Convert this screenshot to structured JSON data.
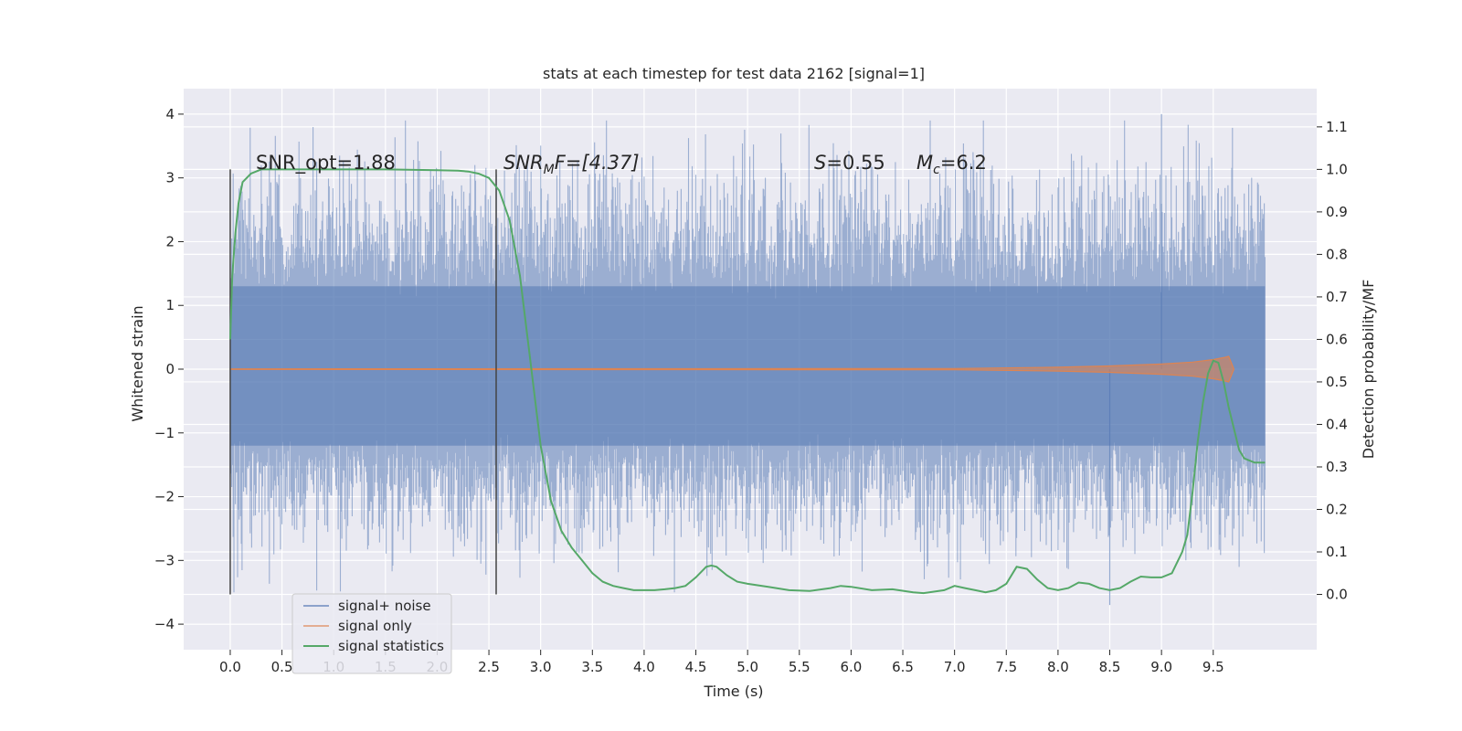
{
  "chart_data": {
    "type": "line",
    "title": "stats at each timestep for test data 2162 [signal=1]",
    "xlabel": "Time (s)",
    "ylabel": "Whitened strain",
    "y2label": "Detection probability/MF",
    "xlim": [
      -0.45,
      10.5
    ],
    "ylim": [
      -4.4,
      4.4
    ],
    "y2lim": [
      -0.13,
      1.19
    ],
    "x_ticks": [
      0.0,
      0.5,
      1.0,
      1.5,
      2.0,
      2.5,
      3.0,
      3.5,
      4.0,
      4.5,
      5.0,
      5.5,
      6.0,
      6.5,
      7.0,
      7.5,
      8.0,
      8.5,
      9.0,
      9.5
    ],
    "x_tick_labels": [
      "0.0",
      "0.5",
      "1.0",
      "1.5",
      "2.0",
      "2.5",
      "3.0",
      "3.5",
      "4.0",
      "4.5",
      "5.0",
      "5.5",
      "6.0",
      "6.5",
      "7.0",
      "7.5",
      "8.0",
      "8.5",
      "9.0",
      "9.5"
    ],
    "y_ticks": [
      -4,
      -3,
      -2,
      -1,
      0,
      1,
      2,
      3,
      4
    ],
    "y_tick_labels": [
      "−4",
      "−3",
      "−2",
      "−1",
      "0",
      "1",
      "2",
      "3",
      "4"
    ],
    "y2_ticks": [
      0.0,
      0.1,
      0.2,
      0.3,
      0.4,
      0.5,
      0.6,
      0.7,
      0.8,
      0.9,
      1.0,
      1.1
    ],
    "y2_tick_labels": [
      "0.0",
      "0.1",
      "0.2",
      "0.3",
      "0.4",
      "0.5",
      "0.6",
      "0.7",
      "0.8",
      "0.9",
      "1.0",
      "1.1"
    ],
    "grid": true,
    "legend_position": "lower-left",
    "series": [
      {
        "name": "signal+ noise",
        "axis": "left",
        "color": "#4c72b0",
        "x_range": [
          0.0,
          10.0
        ],
        "band_min": -2.0,
        "band_max": 2.0,
        "extremes_max": 4.0,
        "extremes_min": -3.7
      },
      {
        "name": "signal only",
        "axis": "left",
        "color": "#dd8452",
        "envelope_x": [
          0.0,
          7.0,
          8.0,
          8.5,
          9.0,
          9.3,
          9.5,
          9.6,
          9.65,
          9.7
        ],
        "envelope_amp": [
          0.005,
          0.01,
          0.03,
          0.05,
          0.08,
          0.11,
          0.15,
          0.18,
          0.2,
          0.0
        ]
      },
      {
        "name": "signal statistics",
        "axis": "right",
        "color": "#55a868",
        "x": [
          0.0,
          0.02,
          0.05,
          0.08,
          0.12,
          0.2,
          0.3,
          0.5,
          1.0,
          1.5,
          2.0,
          2.2,
          2.3,
          2.4,
          2.5,
          2.6,
          2.7,
          2.8,
          2.9,
          3.0,
          3.1,
          3.2,
          3.3,
          3.4,
          3.5,
          3.6,
          3.7,
          3.8,
          3.9,
          4.0,
          4.1,
          4.2,
          4.3,
          4.4,
          4.5,
          4.6,
          4.65,
          4.7,
          4.8,
          4.9,
          5.0,
          5.2,
          5.4,
          5.6,
          5.8,
          5.9,
          6.0,
          6.2,
          6.4,
          6.6,
          6.7,
          6.9,
          7.0,
          7.1,
          7.2,
          7.3,
          7.4,
          7.5,
          7.6,
          7.7,
          7.8,
          7.9,
          8.0,
          8.1,
          8.2,
          8.3,
          8.4,
          8.5,
          8.6,
          8.7,
          8.8,
          8.9,
          9.0,
          9.1,
          9.2,
          9.25,
          9.3,
          9.35,
          9.4,
          9.45,
          9.5,
          9.55,
          9.6,
          9.65,
          9.7,
          9.75,
          9.8,
          9.9,
          10.0
        ],
        "y": [
          0.6,
          0.75,
          0.85,
          0.92,
          0.97,
          0.99,
          1.0,
          1.0,
          1.0,
          1.0,
          0.998,
          0.997,
          0.995,
          0.99,
          0.98,
          0.95,
          0.88,
          0.75,
          0.55,
          0.35,
          0.22,
          0.15,
          0.11,
          0.08,
          0.05,
          0.03,
          0.02,
          0.015,
          0.01,
          0.01,
          0.01,
          0.012,
          0.015,
          0.02,
          0.04,
          0.065,
          0.068,
          0.065,
          0.045,
          0.03,
          0.025,
          0.018,
          0.01,
          0.008,
          0.015,
          0.02,
          0.018,
          0.01,
          0.012,
          0.005,
          0.003,
          0.01,
          0.02,
          0.015,
          0.01,
          0.005,
          0.01,
          0.025,
          0.065,
          0.06,
          0.035,
          0.015,
          0.01,
          0.015,
          0.028,
          0.025,
          0.015,
          0.01,
          0.015,
          0.03,
          0.042,
          0.04,
          0.04,
          0.05,
          0.1,
          0.14,
          0.24,
          0.36,
          0.45,
          0.52,
          0.55,
          0.545,
          0.5,
          0.44,
          0.39,
          0.34,
          0.32,
          0.31,
          0.31
        ]
      }
    ],
    "annotations": [
      {
        "name": "snr-opt",
        "text": "SNR_opt=1.88"
      },
      {
        "name": "snr-mf-label",
        "text": "SNR",
        "sub": "M",
        "rest": "F=[4.37]"
      },
      {
        "name": "s-label",
        "text": "S",
        "rest": "=0.55"
      },
      {
        "name": "mc-label",
        "text": "M",
        "sub": "c",
        "rest": "=6.2"
      }
    ],
    "vertical_lines_x": [
      0.0,
      2.57
    ]
  }
}
